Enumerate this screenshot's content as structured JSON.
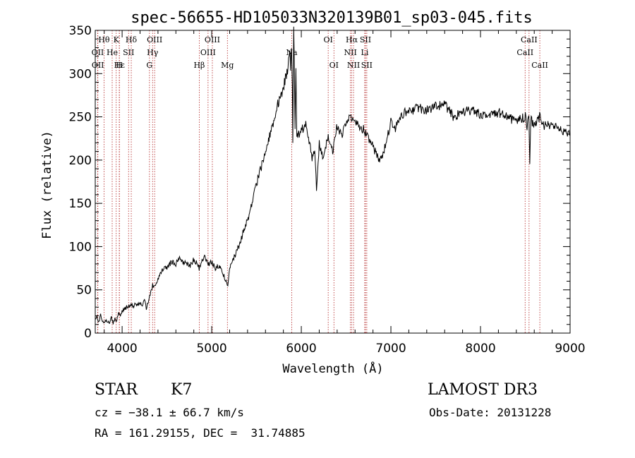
{
  "chart_data": {
    "type": "line",
    "title": "spec-56655-HD105033N320139B01_sp03-045.fits",
    "xlabel": "Wavelength (Å)",
    "ylabel": "Flux (relative)",
    "xlim": [
      3700,
      9000
    ],
    "ylim": [
      0,
      350
    ],
    "xticks": [
      4000,
      5000,
      6000,
      7000,
      8000,
      9000
    ],
    "yticks": [
      0,
      50,
      100,
      150,
      200,
      250,
      300,
      350
    ],
    "grid": false,
    "line_color": "#000000",
    "marker_color": "#b22222",
    "series": [
      {
        "x": [
          3700,
          3720,
          3740,
          3760,
          3780,
          3800,
          3830,
          3860,
          3880,
          3900,
          3920,
          3940,
          3960,
          3980,
          4000,
          4020,
          4050,
          4080,
          4100,
          4130,
          4160,
          4200,
          4220,
          4250,
          4270,
          4300,
          4320,
          4340,
          4360,
          4400,
          4430,
          4460,
          4500,
          4530,
          4560,
          4600,
          4640,
          4680,
          4720,
          4760,
          4800,
          4840,
          4860,
          4880,
          4900,
          4920,
          4960,
          5000,
          5040,
          5080,
          5120,
          5160,
          5180,
          5200,
          5240,
          5280,
          5320,
          5360,
          5400,
          5440,
          5480,
          5520,
          5560,
          5600,
          5640,
          5680,
          5720,
          5760,
          5800,
          5840,
          5870,
          5880,
          5890,
          5900,
          5905,
          5915,
          5920,
          5930,
          5940,
          5950,
          5960,
          6000,
          6050,
          6080,
          6100,
          6120,
          6150,
          6170,
          6200,
          6250,
          6300,
          6350,
          6400,
          6450,
          6500,
          6520,
          6540,
          6560,
          6580,
          6600,
          6640,
          6700,
          6750,
          6800,
          6850,
          6880,
          6900,
          6950,
          7000,
          7050,
          7100,
          7150,
          7200,
          7300,
          7400,
          7500,
          7600,
          7700,
          7800,
          7900,
          8000,
          8100,
          8200,
          8300,
          8400,
          8500,
          8520,
          8540,
          8550,
          8560,
          8600,
          8640,
          8660,
          8700,
          8800,
          8900,
          9000
        ],
        "y": [
          15,
          20,
          12,
          22,
          12,
          14,
          14,
          13,
          18,
          12,
          16,
          14,
          22,
          20,
          25,
          28,
          30,
          31,
          33,
          32,
          33,
          35,
          30,
          38,
          28,
          40,
          46,
          55,
          52,
          62,
          68,
          74,
          75,
          80,
          82,
          80,
          88,
          82,
          80,
          78,
          85,
          80,
          75,
          80,
          85,
          88,
          80,
          82,
          75,
          78,
          70,
          60,
          55,
          75,
          85,
          95,
          105,
          120,
          130,
          145,
          165,
          180,
          195,
          210,
          225,
          240,
          260,
          270,
          285,
          300,
          320,
          310,
          335,
          290,
          220,
          350,
          330,
          240,
          300,
          230,
          228,
          235,
          240,
          225,
          215,
          200,
          210,
          165,
          220,
          200,
          230,
          210,
          240,
          230,
          240,
          245,
          255,
          245,
          250,
          245,
          240,
          235,
          225,
          215,
          205,
          200,
          205,
          220,
          245,
          235,
          250,
          255,
          255,
          260,
          258,
          262,
          265,
          250,
          255,
          258,
          252,
          250,
          255,
          250,
          245,
          250,
          240,
          250,
          200,
          248,
          240,
          245,
          250,
          240,
          240,
          235,
          230
        ]
      }
    ],
    "lines": [
      {
        "label": "Hθ",
        "x": 3798,
        "row": 0
      },
      {
        "label": "K",
        "x": 3934,
        "row": 0
      },
      {
        "label": "Hδ",
        "x": 4102,
        "row": 0
      },
      {
        "label": "OIII",
        "x": 4363,
        "row": 0
      },
      {
        "label": "OIII",
        "x": 5007,
        "row": 0
      },
      {
        "label": "OI",
        "x": 6300,
        "row": 0
      },
      {
        "label": "Hα",
        "x": 6563,
        "row": 0
      },
      {
        "label": "SII",
        "x": 6716,
        "row": 0
      },
      {
        "label": "CaII",
        "x": 8542,
        "row": 0
      },
      {
        "label": "OII",
        "x": 3727,
        "row": 1
      },
      {
        "label": "He",
        "x": 3889,
        "row": 1
      },
      {
        "label": "SII",
        "x": 4072,
        "row": 1
      },
      {
        "label": "Hγ",
        "x": 4340,
        "row": 1
      },
      {
        "label": "OIII",
        "x": 4959,
        "row": 1
      },
      {
        "label": "Na",
        "x": 5893,
        "row": 1
      },
      {
        "label": "NII",
        "x": 6548,
        "row": 1
      },
      {
        "label": "Li",
        "x": 6708,
        "row": 1
      },
      {
        "label": "CaII",
        "x": 8498,
        "row": 1
      },
      {
        "label": "OII",
        "x": 3729,
        "row": 2
      },
      {
        "label": "Hε",
        "x": 3970,
        "row": 2
      },
      {
        "label": "H",
        "x": 3968,
        "row": 2
      },
      {
        "label": "G",
        "x": 4305,
        "row": 2
      },
      {
        "label": "Hβ",
        "x": 4861,
        "row": 2
      },
      {
        "label": "Mg",
        "x": 5175,
        "row": 2
      },
      {
        "label": "OI",
        "x": 6364,
        "row": 2
      },
      {
        "label": "NII",
        "x": 6583,
        "row": 2
      },
      {
        "label": "SII",
        "x": 6731,
        "row": 2
      },
      {
        "label": "CaII",
        "x": 8662,
        "row": 2
      }
    ]
  },
  "info": {
    "object_type": "STAR",
    "subclass": "K7",
    "survey": "LAMOST DR3",
    "cz": "cz = −38.1 ± 66.7 km/s",
    "obs_date": "Obs-Date: 20131228",
    "radec": "RA = 161.29155, DEC =  31.74885"
  }
}
